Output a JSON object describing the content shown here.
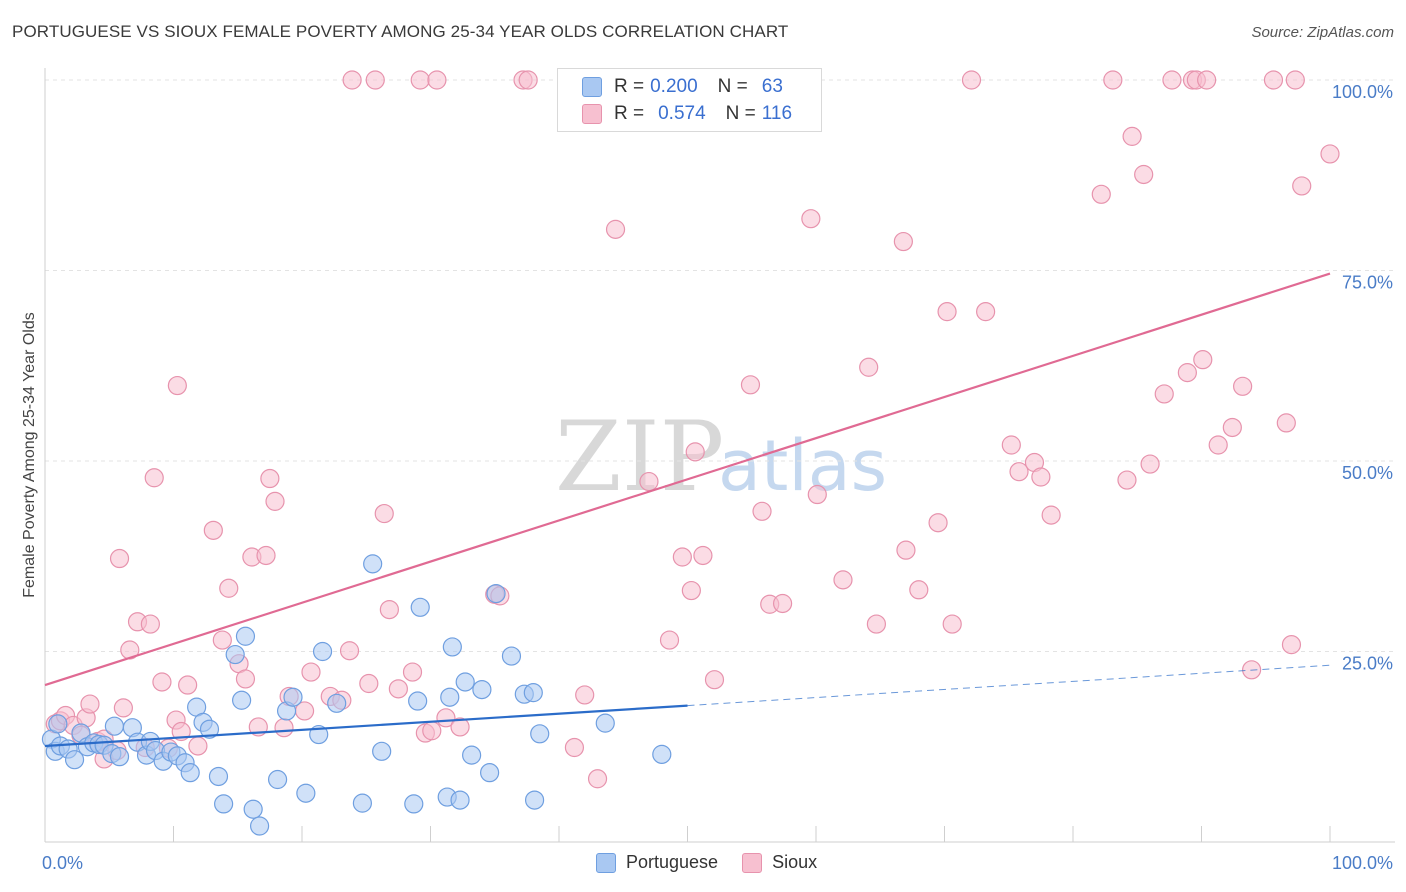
{
  "title": "PORTUGUESE VS SIOUX FEMALE POVERTY AMONG 25-34 YEAR OLDS CORRELATION CHART",
  "source": "Source: ZipAtlas.com",
  "legend_top": {
    "rows": [
      {
        "r_label": "R =",
        "r_value": "0.200",
        "n_label": "N =",
        "n_value": "63"
      },
      {
        "r_label": "R =",
        "r_value": "0.574",
        "n_label": "N =",
        "n_value": "116"
      }
    ]
  },
  "legend_bottom": [
    "Portuguese",
    "Sioux"
  ],
  "watermark": {
    "zip": "ZIP",
    "atlas": "atlas"
  },
  "colors": {
    "portuguese_fill": "#a9c8f2",
    "portuguese_stroke": "#6f9fe0",
    "portuguese_line": "#2b6cc9",
    "sioux_fill": "#f7c0d0",
    "sioux_stroke": "#e793ad",
    "sioux_line": "#e06a93",
    "tick_label": "#4a7cc7",
    "grid": "#e3e3e3"
  },
  "chart_data": {
    "type": "scatter",
    "title": "PORTUGUESE VS SIOUX FEMALE POVERTY AMONG 25-34 YEAR OLDS CORRELATION CHART",
    "xlabel": "",
    "ylabel": "Female Poverty Among 25-34 Year Olds",
    "xlim": [
      0,
      100
    ],
    "ylim": [
      0,
      100
    ],
    "x_tick_labels": [
      "0.0%",
      "100.0%"
    ],
    "y_tick_labels": [
      "25.0%",
      "50.0%",
      "75.0%",
      "100.0%"
    ],
    "y_tick_values": [
      25,
      50,
      75,
      100
    ],
    "grid": true,
    "legend_position": "bottom",
    "series": [
      {
        "name": "Portuguese",
        "r": 0.2,
        "n": 63,
        "trend": {
          "x0": 0,
          "y0": 12.6,
          "x1": 50,
          "y1": 17.9,
          "dashed_to_x": 100,
          "dashed_to_y": 23.2
        },
        "points": [
          [
            0.5,
            13.5
          ],
          [
            0.8,
            11.9
          ],
          [
            1.0,
            15.5
          ],
          [
            1.2,
            12.6
          ],
          [
            1.8,
            12.2
          ],
          [
            2.3,
            10.8
          ],
          [
            2.8,
            14.3
          ],
          [
            3.3,
            12.5
          ],
          [
            3.8,
            13.0
          ],
          [
            4.2,
            12.8
          ],
          [
            4.6,
            12.7
          ],
          [
            5.2,
            11.6
          ],
          [
            5.4,
            15.2
          ],
          [
            5.8,
            11.2
          ],
          [
            6.8,
            15.0
          ],
          [
            7.2,
            13.1
          ],
          [
            7.9,
            11.4
          ],
          [
            8.2,
            13.2
          ],
          [
            8.6,
            12.0
          ],
          [
            9.2,
            10.6
          ],
          [
            9.8,
            11.8
          ],
          [
            10.3,
            11.3
          ],
          [
            10.9,
            10.4
          ],
          [
            11.3,
            9.1
          ],
          [
            11.8,
            17.7
          ],
          [
            12.3,
            15.7
          ],
          [
            12.8,
            14.8
          ],
          [
            13.5,
            8.6
          ],
          [
            13.9,
            5.0
          ],
          [
            14.8,
            24.6
          ],
          [
            15.3,
            18.6
          ],
          [
            15.6,
            27.0
          ],
          [
            16.2,
            4.3
          ],
          [
            16.7,
            2.1
          ],
          [
            18.1,
            8.2
          ],
          [
            18.8,
            17.2
          ],
          [
            19.3,
            19.0
          ],
          [
            20.3,
            6.4
          ],
          [
            21.3,
            14.1
          ],
          [
            21.6,
            25.0
          ],
          [
            22.7,
            18.2
          ],
          [
            24.7,
            5.1
          ],
          [
            25.5,
            36.5
          ],
          [
            26.2,
            11.9
          ],
          [
            28.7,
            5.0
          ],
          [
            29.0,
            18.5
          ],
          [
            29.2,
            30.8
          ],
          [
            31.3,
            5.9
          ],
          [
            31.7,
            25.6
          ],
          [
            31.5,
            19.0
          ],
          [
            32.3,
            5.5
          ],
          [
            32.7,
            21.0
          ],
          [
            33.2,
            11.4
          ],
          [
            34.0,
            20.0
          ],
          [
            34.6,
            9.1
          ],
          [
            35.1,
            32.6
          ],
          [
            36.3,
            24.4
          ],
          [
            37.3,
            19.4
          ],
          [
            38.0,
            19.6
          ],
          [
            38.5,
            14.2
          ],
          [
            38.1,
            5.5
          ],
          [
            43.6,
            15.6
          ],
          [
            48.0,
            11.5
          ]
        ]
      },
      {
        "name": "Sioux",
        "r": 0.574,
        "n": 116,
        "trend": {
          "x0": 0,
          "y0": 20.6,
          "x1": 100,
          "y1": 74.6
        },
        "points": [
          [
            0.8,
            15.5
          ],
          [
            1.2,
            15.9
          ],
          [
            1.6,
            16.6
          ],
          [
            2.2,
            15.3
          ],
          [
            2.8,
            14.0
          ],
          [
            3.2,
            16.3
          ],
          [
            3.5,
            18.1
          ],
          [
            4.1,
            13.2
          ],
          [
            4.6,
            13.5
          ],
          [
            4.6,
            10.9
          ],
          [
            5.6,
            12.0
          ],
          [
            5.8,
            37.2
          ],
          [
            6.1,
            17.6
          ],
          [
            6.6,
            25.2
          ],
          [
            7.2,
            28.9
          ],
          [
            7.8,
            12.4
          ],
          [
            8.2,
            28.6
          ],
          [
            8.5,
            47.8
          ],
          [
            9.1,
            21.0
          ],
          [
            9.6,
            12.3
          ],
          [
            10.2,
            16.0
          ],
          [
            10.6,
            14.5
          ],
          [
            10.3,
            59.9
          ],
          [
            11.1,
            20.6
          ],
          [
            11.9,
            12.6
          ],
          [
            13.1,
            40.9
          ],
          [
            13.8,
            26.5
          ],
          [
            14.3,
            33.3
          ],
          [
            15.1,
            23.4
          ],
          [
            15.6,
            21.4
          ],
          [
            16.1,
            37.4
          ],
          [
            16.6,
            15.1
          ],
          [
            17.2,
            37.6
          ],
          [
            17.5,
            47.7
          ],
          [
            17.9,
            44.7
          ],
          [
            18.6,
            15.0
          ],
          [
            19.0,
            19.1
          ],
          [
            20.2,
            17.2
          ],
          [
            20.7,
            22.3
          ],
          [
            22.2,
            19.1
          ],
          [
            23.1,
            18.6
          ],
          [
            23.7,
            25.1
          ],
          [
            23.9,
            100
          ],
          [
            25.2,
            20.8
          ],
          [
            25.7,
            100
          ],
          [
            26.4,
            43.1
          ],
          [
            26.8,
            30.5
          ],
          [
            27.5,
            20.1
          ],
          [
            28.6,
            22.3
          ],
          [
            29.2,
            100
          ],
          [
            29.6,
            14.3
          ],
          [
            30.1,
            14.6
          ],
          [
            30.5,
            100
          ],
          [
            31.2,
            16.3
          ],
          [
            32.3,
            15.1
          ],
          [
            35.0,
            32.5
          ],
          [
            35.4,
            32.3
          ],
          [
            37.2,
            100
          ],
          [
            37.6,
            100
          ],
          [
            40.6,
            100
          ],
          [
            41.2,
            12.4
          ],
          [
            42.0,
            19.3
          ],
          [
            43.0,
            8.3
          ],
          [
            44.4,
            80.4
          ],
          [
            45.0,
            100
          ],
          [
            47.0,
            47.3
          ],
          [
            48.6,
            26.5
          ],
          [
            49.6,
            37.4
          ],
          [
            50.3,
            33.0
          ],
          [
            50.6,
            51.2
          ],
          [
            51.2,
            37.6
          ],
          [
            52.1,
            21.3
          ],
          [
            54.6,
            98.0
          ],
          [
            54.9,
            60.0
          ],
          [
            55.8,
            43.4
          ],
          [
            56.4,
            31.2
          ],
          [
            57.4,
            31.3
          ],
          [
            59.6,
            81.8
          ],
          [
            60.1,
            45.6
          ],
          [
            62.1,
            34.4
          ],
          [
            64.1,
            62.3
          ],
          [
            64.7,
            28.6
          ],
          [
            66.8,
            78.8
          ],
          [
            67.0,
            38.3
          ],
          [
            68.0,
            33.1
          ],
          [
            69.5,
            41.9
          ],
          [
            70.2,
            69.6
          ],
          [
            70.6,
            28.6
          ],
          [
            72.1,
            100
          ],
          [
            73.2,
            69.6
          ],
          [
            75.2,
            52.1
          ],
          [
            75.8,
            48.6
          ],
          [
            77.0,
            49.8
          ],
          [
            77.5,
            47.9
          ],
          [
            78.3,
            42.9
          ],
          [
            82.2,
            85.0
          ],
          [
            83.1,
            100
          ],
          [
            84.2,
            47.5
          ],
          [
            84.6,
            92.6
          ],
          [
            85.5,
            87.6
          ],
          [
            86.0,
            49.6
          ],
          [
            87.1,
            58.8
          ],
          [
            87.7,
            100
          ],
          [
            88.9,
            61.6
          ],
          [
            89.3,
            100
          ],
          [
            89.6,
            100
          ],
          [
            90.1,
            63.3
          ],
          [
            90.4,
            100
          ],
          [
            91.3,
            52.1
          ],
          [
            92.4,
            54.4
          ],
          [
            93.2,
            59.8
          ],
          [
            93.9,
            22.6
          ],
          [
            95.6,
            100
          ],
          [
            96.6,
            55.0
          ],
          [
            97.0,
            25.9
          ],
          [
            97.3,
            100
          ],
          [
            97.8,
            86.1
          ],
          [
            100.0,
            90.3
          ]
        ]
      }
    ]
  }
}
